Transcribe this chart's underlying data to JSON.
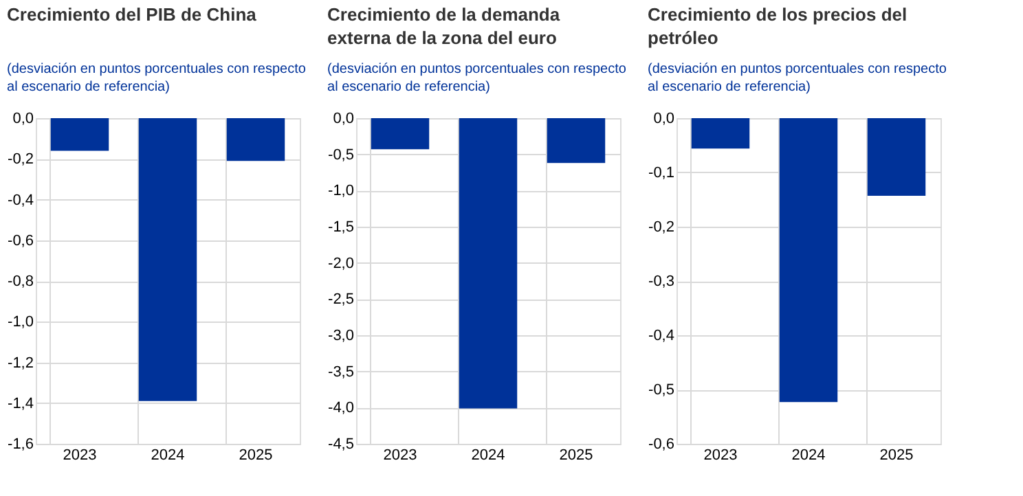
{
  "chart_data": [
    {
      "type": "bar",
      "title": "Crecimiento del PIB de China",
      "subtitle": "(desviación en puntos porcentuales con respecto al escenario de referencia)",
      "categories": [
        "2023",
        "2024",
        "2025"
      ],
      "values": [
        -0.16,
        -1.39,
        -0.21
      ],
      "color": "#003299",
      "ylim": [
        -1.6,
        0
      ],
      "yticks": [
        {
          "value": 0,
          "label": "0,0"
        },
        {
          "value": -0.2,
          "label": "-0,2"
        },
        {
          "value": -0.4,
          "label": "-0,4"
        },
        {
          "value": -0.6,
          "label": "-0,6"
        },
        {
          "value": -0.8,
          "label": "-0,8"
        },
        {
          "value": -1.0,
          "label": "-1,0"
        },
        {
          "value": -1.2,
          "label": "-1,2"
        },
        {
          "value": -1.4,
          "label": "-1,4"
        },
        {
          "value": -1.6,
          "label": "-1,6"
        }
      ],
      "grid": true
    },
    {
      "type": "bar",
      "title": "Crecimiento de la demanda externa de la zona del euro",
      "subtitle": "(desviación en puntos porcentuales con respecto al escenario de referencia)",
      "categories": [
        "2023",
        "2024",
        "2025"
      ],
      "values": [
        -0.43,
        -4.01,
        -0.62
      ],
      "color": "#003299",
      "ylim": [
        -4.5,
        0
      ],
      "yticks": [
        {
          "value": 0,
          "label": "0,0"
        },
        {
          "value": -0.5,
          "label": "-0,5"
        },
        {
          "value": -1.0,
          "label": "-1,0"
        },
        {
          "value": -1.5,
          "label": "-1,5"
        },
        {
          "value": -2.0,
          "label": "-2,0"
        },
        {
          "value": -2.5,
          "label": "-2,5"
        },
        {
          "value": -3.0,
          "label": "-3,0"
        },
        {
          "value": -3.5,
          "label": "-3,5"
        },
        {
          "value": -4.0,
          "label": "-4,0"
        },
        {
          "value": -4.5,
          "label": "-4,5"
        }
      ],
      "grid": true
    },
    {
      "type": "bar",
      "title": "Crecimiento de los precios del petróleo",
      "subtitle": "(desviación en puntos porcentuales con respecto al escenario de referencia)",
      "categories": [
        "2023",
        "2024",
        "2025"
      ],
      "values": [
        -0.056,
        -0.523,
        -0.143
      ],
      "color": "#003299",
      "ylim": [
        -0.6,
        0
      ],
      "yticks": [
        {
          "value": 0,
          "label": "0,0"
        },
        {
          "value": -0.1,
          "label": "-0,1"
        },
        {
          "value": -0.2,
          "label": "-0,2"
        },
        {
          "value": -0.3,
          "label": "-0,3"
        },
        {
          "value": -0.4,
          "label": "-0,4"
        },
        {
          "value": -0.5,
          "label": "-0,5"
        },
        {
          "value": -0.6,
          "label": "-0,6"
        }
      ],
      "grid": true
    }
  ]
}
